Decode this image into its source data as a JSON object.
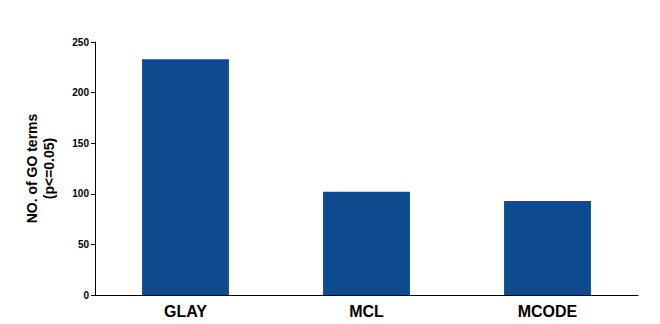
{
  "chart_data": {
    "type": "bar",
    "ylabel": "NO. of GO terms\n(p<=0.05)",
    "categories": [
      "GLAY",
      "MCL",
      "MCODE"
    ],
    "values": [
      233,
      102,
      93
    ],
    "color": "#0d4b8e",
    "ylim": [
      0,
      250
    ],
    "yticks": [
      0,
      50,
      100,
      150,
      200,
      250
    ],
    "grid": false
  }
}
